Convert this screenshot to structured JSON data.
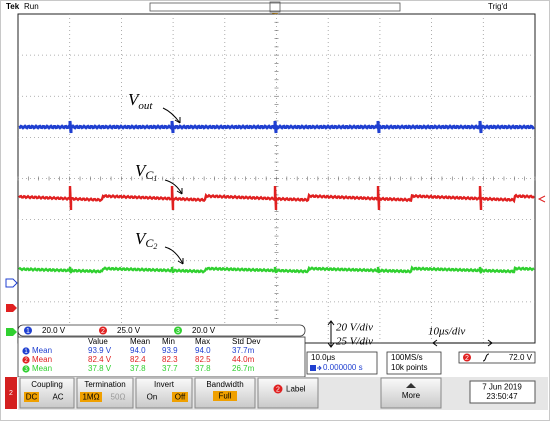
{
  "header": {
    "brand": "Tek",
    "state": "Run",
    "trigger_status": "Trig'd"
  },
  "annotations": [
    {
      "symbol": "V",
      "subscript": "out"
    },
    {
      "symbol": "V",
      "subscript": "C",
      "sub_subscript": "1"
    },
    {
      "symbol": "V",
      "subscript": "C",
      "sub_subscript": "2"
    }
  ],
  "scale_notes": {
    "vertical": [
      "20 V/div",
      "25 V/div"
    ],
    "horizontal": "10μs/div"
  },
  "channels": [
    {
      "number": "1",
      "scale": "20.0 V"
    },
    {
      "number": "2",
      "scale": "25.0 V"
    },
    {
      "number": "3",
      "scale": "20.0 V"
    }
  ],
  "measurements": {
    "headers": [
      "Value",
      "Mean",
      "Min",
      "Max",
      "Std Dev"
    ],
    "rows": [
      {
        "channel": "1",
        "label": "Mean",
        "cells": [
          "93.9 V",
          "94.0",
          "93.9",
          "94.0",
          "37.7m"
        ]
      },
      {
        "channel": "2",
        "label": "Mean",
        "cells": [
          "82.4 V",
          "82.4",
          "82.3",
          "82.5",
          "44.0m"
        ]
      },
      {
        "channel": "3",
        "label": "Mean",
        "cells": [
          "37.8 V",
          "37.8",
          "37.7",
          "37.8",
          "26.7m"
        ]
      }
    ]
  },
  "horizontal": {
    "scale": "10.0μs",
    "position": "0.000000 s"
  },
  "acquisition": {
    "rate": "100MS/s",
    "points": "10k points"
  },
  "trigger": {
    "channel": "2",
    "level": "72.0 V"
  },
  "menu": {
    "coupling": {
      "title": "Coupling",
      "options": [
        "DC",
        "AC"
      ]
    },
    "termination": {
      "title": "Termination",
      "options": [
        "1MΩ",
        "50Ω"
      ]
    },
    "invert": {
      "title": "Invert",
      "options": [
        "On",
        "Off"
      ]
    },
    "bandwidth": {
      "title": "Bandwidth",
      "option": "Full"
    },
    "label": {
      "channel": "2",
      "title": "Label"
    },
    "more": "More"
  },
  "datetime": {
    "date": "7 Jun 2019",
    "time": "23:50:47"
  }
}
